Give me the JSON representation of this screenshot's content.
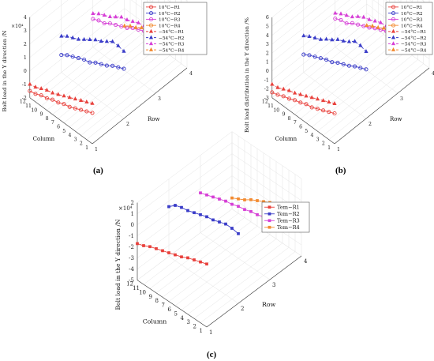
{
  "figure": {
    "panel_labels": [
      "(a)",
      "(b)",
      "(c)"
    ]
  },
  "chart_data": [
    {
      "type": "line",
      "panel": "(a)",
      "title": "",
      "zlabel": "Bolt load in the Y direction /N",
      "exponent": "×10⁴",
      "xlabel": "Row",
      "ylabel": "Column",
      "xticks": [
        "1",
        "2",
        "3",
        "4"
      ],
      "yticks": [
        "12",
        "11",
        "10",
        "9",
        "8",
        "7",
        "6",
        "5",
        "4",
        "3",
        "2",
        "1"
      ],
      "zticks": [
        "4",
        "3",
        "2",
        "1",
        "0",
        "-1",
        "-2"
      ],
      "zlim": [
        -2,
        4
      ],
      "legend_position": "top-right",
      "series": [
        {
          "name": "10°C−R1",
          "row": 1,
          "marker": "circle",
          "color": "#e8413c",
          "dash": "solid",
          "z": [
            0.3,
            0.1,
            -0.1,
            -0.3,
            -0.5,
            -0.6,
            -0.8,
            -0.9,
            -1.1,
            -1.2,
            -1.4,
            -1.5
          ]
        },
        {
          "name": "10°C−R2",
          "row": 2,
          "marker": "circle",
          "color": "#3a3cc8",
          "dash": "solid",
          "z": [
            1.7,
            1.5,
            1.3,
            1.0,
            0.8,
            0.6,
            0.3,
            0.2,
            0.0,
            -0.2,
            -0.4,
            -0.7
          ]
        },
        {
          "name": "10°C−R3",
          "row": 3,
          "marker": "circle",
          "color": "#d63fd6",
          "dash": "solid",
          "z": [
            2.3,
            2.2,
            2.0,
            1.8,
            1.6,
            1.3,
            1.1,
            0.9,
            0.7,
            0.4,
            0.3,
            0.1
          ]
        },
        {
          "name": "10°C−R4",
          "row": 4,
          "marker": "circle",
          "color": "#f28a30",
          "dash": "solid",
          "z": [
            3.5,
            3.3,
            3.1,
            2.9,
            2.6,
            2.3,
            2.0,
            1.8,
            1.5,
            1.2,
            1.0,
            0.8
          ]
        },
        {
          "name": "−54°C−R1",
          "row": 1,
          "marker": "triangle",
          "color": "#e8413c",
          "dash": "dashed",
          "z": [
            1.0,
            0.8,
            0.6,
            0.4,
            0.2,
            0.0,
            -0.2,
            -0.4,
            -0.5,
            -0.7,
            -0.9,
            -1.0
          ]
        },
        {
          "name": "−54°C−R2",
          "row": 2,
          "marker": "triangle",
          "color": "#3a3cc8",
          "dash": "dashed",
          "z": [
            3.0,
            3.1,
            3.1,
            2.8,
            2.5,
            2.3,
            2.0,
            1.7,
            1.4,
            1.2,
            1.0,
            0.7
          ]
        },
        {
          "name": "−54°C−R3",
          "row": 3,
          "marker": "triangle",
          "color": "#d63fd6",
          "dash": "dashed",
          "z": [
            2.6,
            2.5,
            2.4,
            2.3,
            2.1,
            1.9,
            1.8,
            1.5,
            1.2,
            1.0,
            0.8,
            0.5
          ]
        },
        {
          "name": "−54°C−R4",
          "row": 4,
          "marker": "triangle",
          "color": "#f28a30",
          "dash": "dashed",
          "z": [
            0.6,
            0.4,
            0.1,
            -0.2,
            -0.5,
            -0.8,
            -1.0,
            -1.3,
            -1.5,
            -1.8,
            -2.0,
            -2.3
          ]
        }
      ]
    },
    {
      "type": "line",
      "panel": "(b)",
      "title": "",
      "zlabel": "Bolt load distribution in the Y direction /%",
      "xlabel": "Row",
      "ylabel": "Column",
      "xticks": [
        "1",
        "2",
        "3",
        "4"
      ],
      "yticks": [
        "12",
        "11",
        "10",
        "9",
        "8",
        "7",
        "6",
        "5",
        "4",
        "3",
        "2",
        "1"
      ],
      "zticks": [
        "6",
        "5",
        "4",
        "3",
        "2",
        "1",
        "0",
        "-1",
        "-2",
        "-3"
      ],
      "zlim": [
        -3,
        6
      ],
      "legend_position": "top-right",
      "series": [
        {
          "name": "10°C−R1",
          "row": 1,
          "marker": "circle",
          "color": "#e8413c",
          "dash": "solid",
          "z": [
            0.4,
            0.1,
            -0.2,
            -0.5,
            -0.8,
            -0.9,
            -1.2,
            -1.4,
            -1.7,
            -1.9,
            -2.2,
            -2.4
          ]
        },
        {
          "name": "10°C−R2",
          "row": 2,
          "marker": "circle",
          "color": "#3a3cc8",
          "dash": "solid",
          "z": [
            2.5,
            2.2,
            1.9,
            1.5,
            1.2,
            0.9,
            0.5,
            0.3,
            0.0,
            -0.3,
            -0.6,
            -1.0
          ]
        },
        {
          "name": "10°C−R3",
          "row": 3,
          "marker": "circle",
          "color": "#d63fd6",
          "dash": "solid",
          "z": [
            3.4,
            3.3,
            3.0,
            2.7,
            2.4,
            2.0,
            1.7,
            1.4,
            1.1,
            0.6,
            0.5,
            0.2
          ]
        },
        {
          "name": "10°C−R4",
          "row": 4,
          "marker": "circle",
          "color": "#f28a30",
          "dash": "solid",
          "z": [
            5.3,
            5.0,
            4.7,
            4.4,
            3.9,
            3.5,
            3.0,
            2.7,
            2.3,
            1.8,
            1.5,
            1.2
          ]
        },
        {
          "name": "−54°C−R1",
          "row": 1,
          "marker": "triangle",
          "color": "#e8413c",
          "dash": "dashed",
          "z": [
            1.5,
            1.2,
            0.9,
            0.6,
            0.3,
            0.0,
            -0.3,
            -0.6,
            -0.8,
            -1.1,
            -1.4,
            -1.5
          ]
        },
        {
          "name": "−54°C−R2",
          "row": 2,
          "marker": "triangle",
          "color": "#3a3cc8",
          "dash": "dashed",
          "z": [
            4.5,
            4.7,
            4.7,
            4.2,
            3.8,
            3.5,
            3.0,
            2.6,
            2.1,
            1.8,
            1.5,
            1.1
          ]
        },
        {
          "name": "−54°C−R3",
          "row": 3,
          "marker": "triangle",
          "color": "#d63fd6",
          "dash": "dashed",
          "z": [
            3.9,
            3.8,
            3.6,
            3.5,
            3.2,
            2.9,
            2.7,
            2.3,
            1.8,
            1.5,
            1.2,
            0.8
          ]
        },
        {
          "name": "−54°C−R4",
          "row": 4,
          "marker": "triangle",
          "color": "#f28a30",
          "dash": "dashed",
          "z": [
            0.9,
            0.6,
            0.2,
            -0.3,
            -0.8,
            -1.2,
            -1.5,
            -2.0,
            -2.3,
            -2.7,
            -3.0,
            -3.4
          ]
        }
      ]
    },
    {
      "type": "line",
      "panel": "(c)",
      "title": "",
      "zlabel": "Bolt load in the Y direction /N",
      "exponent": "×10⁴",
      "xlabel": "Row",
      "ylabel": "Column",
      "xticks": [
        "1",
        "2",
        "3",
        "4"
      ],
      "yticks": [
        "12",
        "11",
        "10",
        "9",
        "8",
        "7",
        "6",
        "5",
        "4",
        "3",
        "2",
        "1"
      ],
      "zticks": [
        "2",
        "1",
        "0",
        "-1",
        "-2",
        "-3",
        "-4",
        "-5"
      ],
      "zlim": [
        -5,
        2
      ],
      "legend_position": "top-right",
      "series": [
        {
          "name": "Tem−R1",
          "row": 1,
          "marker": "square",
          "color": "#e8413c",
          "dash": "solid",
          "z": [
            0.7,
            0.5,
            0.3,
            0.1,
            -0.2,
            -0.4,
            -0.6,
            -0.8,
            -1.0,
            -1.2,
            -1.5,
            -1.7
          ]
        },
        {
          "name": "Tem−R2",
          "row": 2,
          "marker": "square",
          "color": "#3a3cc8",
          "dash": "solid",
          "z": [
            1.3,
            1.4,
            1.4,
            1.2,
            1.0,
            0.9,
            0.7,
            0.5,
            0.3,
            0.2,
            0.0,
            -0.5
          ]
        },
        {
          "name": "Tem−R3",
          "row": 3,
          "marker": "square",
          "color": "#d63fd6",
          "dash": "solid",
          "z": [
            0.3,
            0.3,
            0.1,
            0.0,
            -0.2,
            -0.3,
            -0.5,
            -0.6,
            -0.8,
            -1.0,
            -1.2,
            -1.4
          ]
        },
        {
          "name": "Tem−R4",
          "row": 4,
          "marker": "square",
          "color": "#f28a30",
          "dash": "solid",
          "z": [
            -1.5,
            -1.5,
            -1.5,
            -1.6,
            -1.9,
            -2.1,
            -2.4,
            -2.7,
            -3.0,
            -3.4,
            -3.7,
            -4.0
          ]
        }
      ]
    }
  ]
}
